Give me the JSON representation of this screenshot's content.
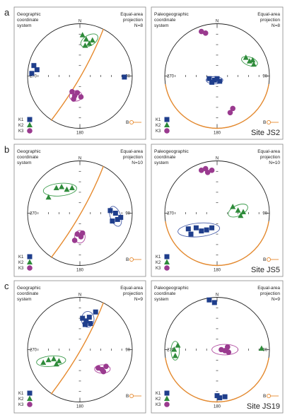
{
  "colors": {
    "k1": "#1f3e8c",
    "k2": "#2e8b3a",
    "k3": "#9a3a8f",
    "plane": "#e68a2e",
    "ellipse_k1": "#4a5fa8",
    "ellipse_k2": "#3a9a4a",
    "ellipse_k3": "#b04aa0",
    "frame": "#888888",
    "axis": "#222222"
  },
  "rows": [
    {
      "letter": "a",
      "site": "Site JS2",
      "panels": [
        {
          "title_lines": [
            "Geographic",
            "coordinate",
            "system"
          ],
          "proj_lines": [
            "Equal-area",
            "projection",
            "N=8"
          ],
          "plane": "geo",
          "legend": [
            "K1",
            "K2",
            "K3"
          ],
          "bedding_label": "B",
          "dirs": {
            "n": "N",
            "w": "270",
            "e": "90",
            "s": "180"
          }
        },
        {
          "title_lines": [
            "Paleogeographic",
            "coordinate",
            "system"
          ],
          "proj_lines": [
            "Equal-area",
            "projection",
            "N=8"
          ],
          "plane": "paleo",
          "legend": [
            "K1",
            "K2",
            "K3"
          ],
          "bedding_label": "B",
          "dirs": {
            "n": "N",
            "w": "270",
            "e": "90",
            "s": "180"
          }
        }
      ]
    },
    {
      "letter": "b",
      "site": "Site JS5",
      "panels": [
        {
          "title_lines": [
            "Geographic",
            "coordinate",
            "system"
          ],
          "proj_lines": [
            "Equal-area",
            "projection",
            "N=10"
          ],
          "plane": "geo",
          "legend": [
            "K1",
            "K2",
            "K3"
          ],
          "bedding_label": "B",
          "dirs": {
            "n": "N",
            "w": "270",
            "e": "90",
            "s": "180"
          }
        },
        {
          "title_lines": [
            "Paleogeographic",
            "coordinate",
            "system"
          ],
          "proj_lines": [
            "Equal-area",
            "projection",
            "N=10"
          ],
          "plane": "paleo",
          "legend": [
            "K1",
            "K2",
            "K3"
          ],
          "bedding_label": "B",
          "dirs": {
            "n": "N",
            "w": "270",
            "e": "90",
            "s": "180"
          }
        }
      ]
    },
    {
      "letter": "c",
      "site": "Site JS19",
      "panels": [
        {
          "title_lines": [
            "Geographic",
            "coordinate",
            "system"
          ],
          "proj_lines": [
            "Equal-area",
            "projection",
            "N=9"
          ],
          "plane": "geo",
          "legend": [
            "K1",
            "K2",
            "K3"
          ],
          "bedding_label": "B",
          "dirs": {
            "n": "N",
            "w": "270",
            "e": "90",
            "s": "180"
          }
        },
        {
          "title_lines": [
            "Paleogeographic",
            "coordinate",
            "system"
          ],
          "proj_lines": [
            "Equal-area",
            "projection",
            "N=9"
          ],
          "plane": "paleo",
          "legend": [
            "K1",
            "K2",
            "K3"
          ],
          "bedding_label": "B",
          "dirs": {
            "n": "N",
            "w": "270",
            "e": "90",
            "s": "180"
          }
        }
      ]
    }
  ]
}
